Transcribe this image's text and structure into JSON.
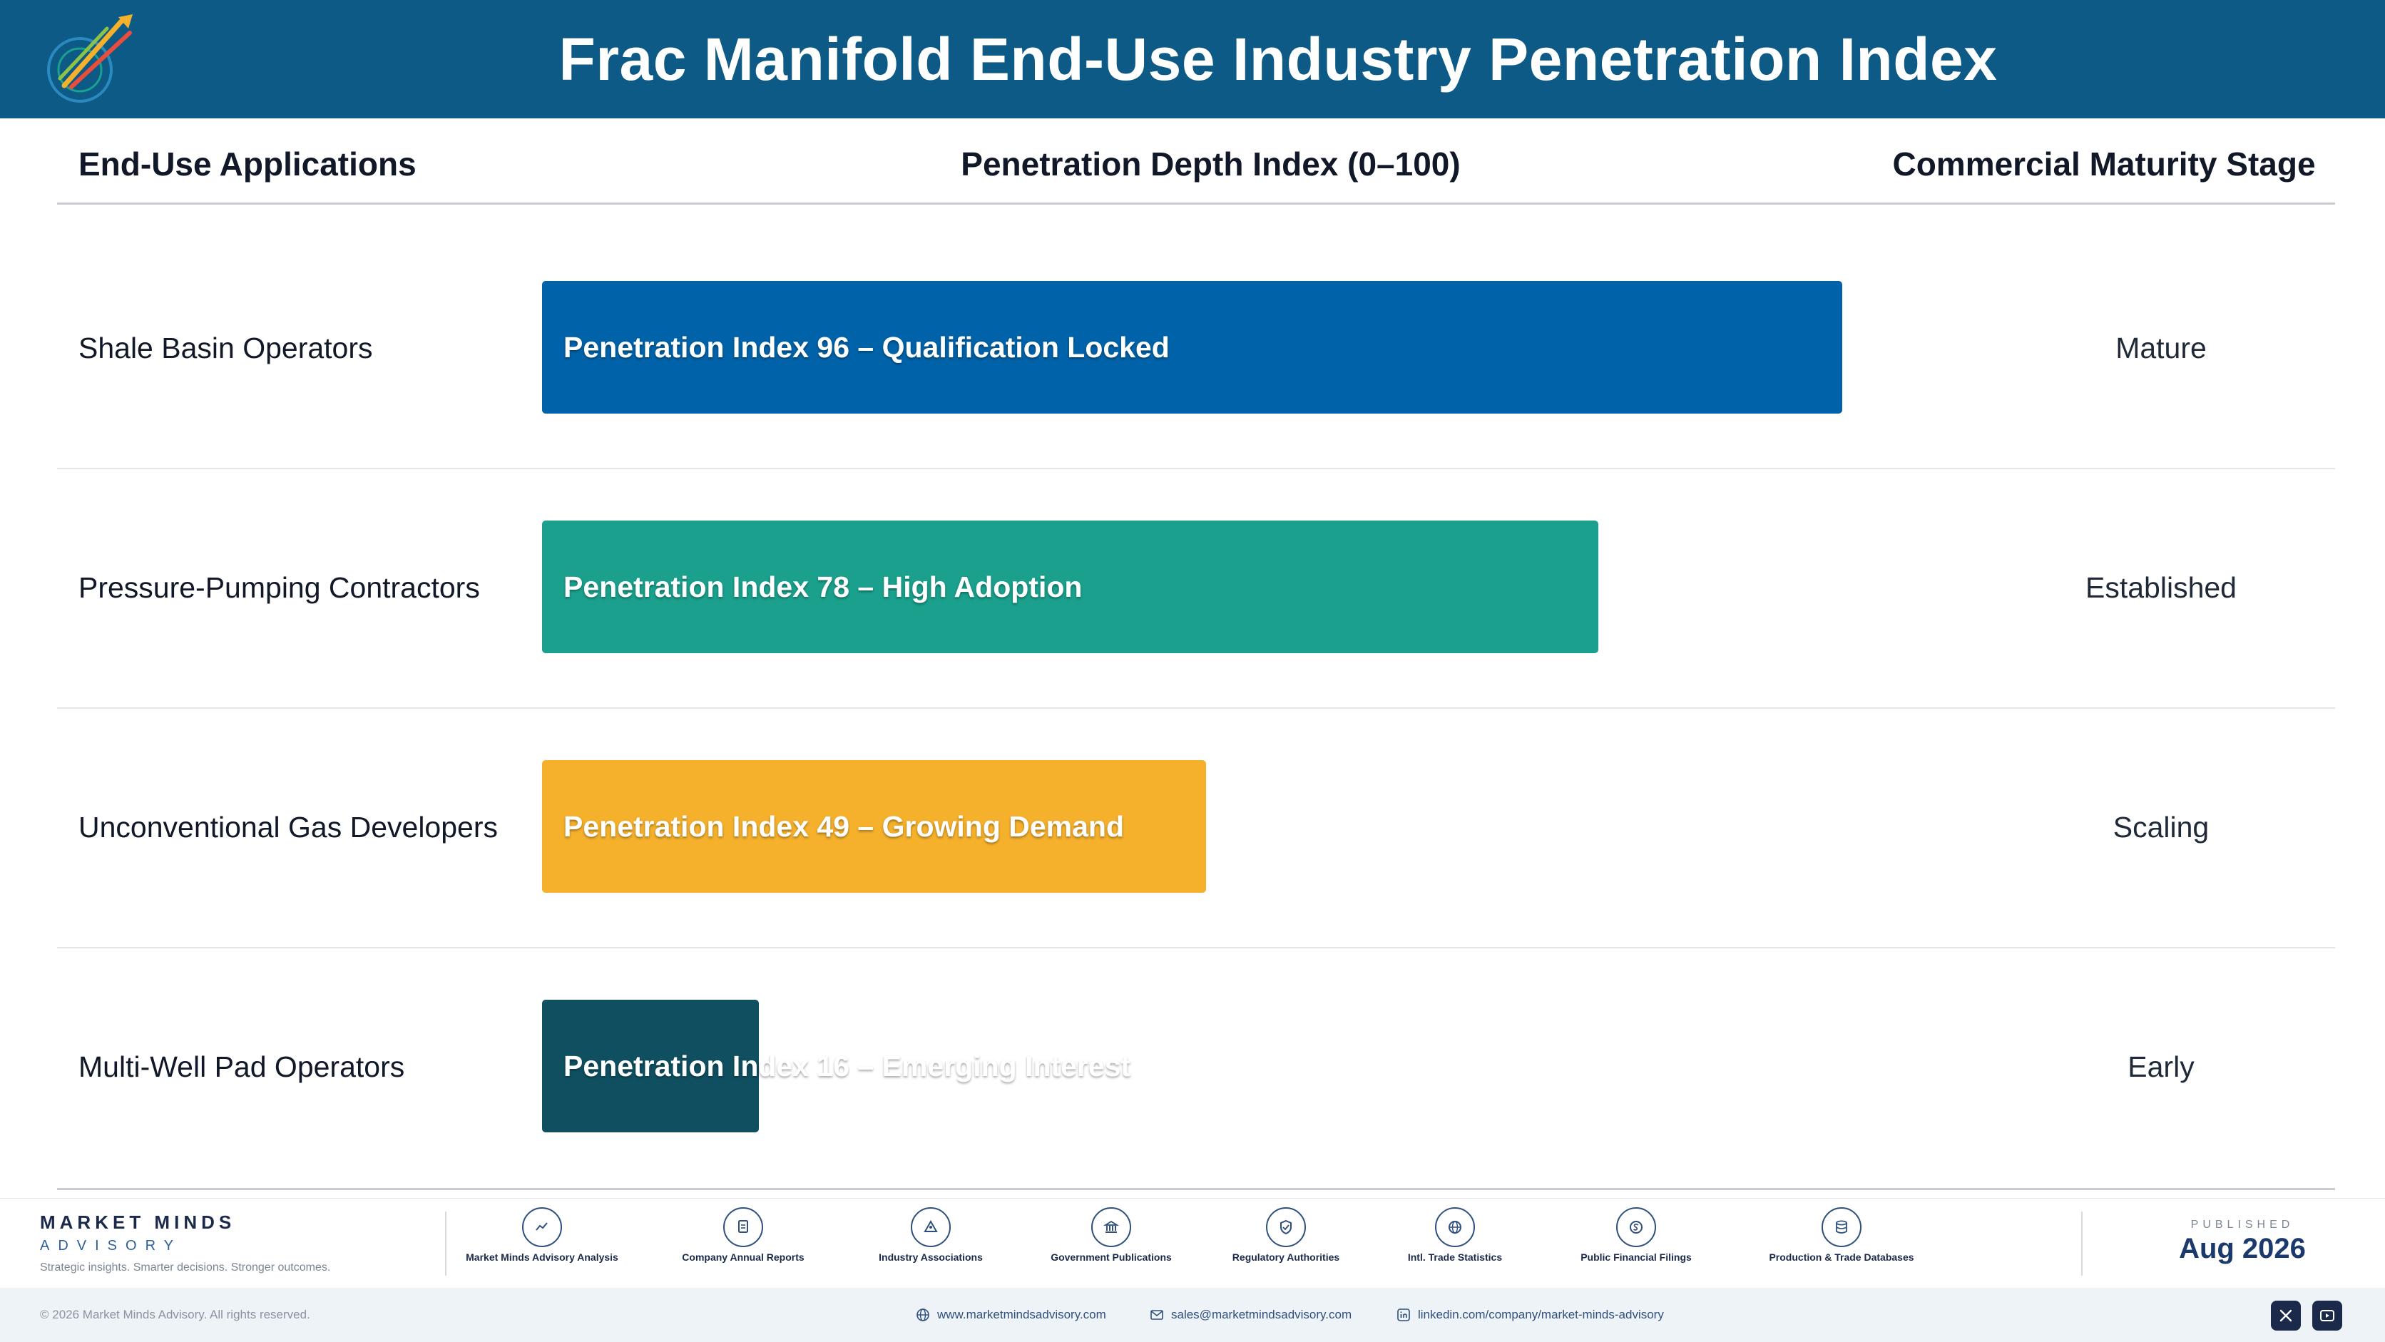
{
  "header": {
    "title": "Frac Manifold End-Use Industry Penetration Index"
  },
  "columns": {
    "applications": "End-Use Applications",
    "index": "Penetration Depth Index (0–100)",
    "stage": "Commercial Maturity Stage"
  },
  "chart_data": {
    "type": "bar",
    "orientation": "horizontal",
    "xlim": [
      0,
      100
    ],
    "categories": [
      "Shale Basin Operators",
      "Pressure-Pumping Contractors",
      "Unconventional Gas Developers",
      "Multi-Well Pad Operators"
    ],
    "values": [
      96,
      78,
      49,
      16
    ],
    "bar_labels": [
      "Penetration Index 96 – Qualification Locked",
      "Penetration Index 78 – High Adoption",
      "Penetration Index 49 – Growing Demand",
      "Penetration Index 16 – Emerging Interest"
    ],
    "stages": [
      "Mature",
      "Established",
      "Scaling",
      "Early"
    ],
    "colors": [
      "#0062a8",
      "#1aa08c",
      "#f5b02c",
      "#0f4f60"
    ]
  },
  "footer": {
    "brand_name": "MARKET MINDS",
    "brand_sub": "ADVISORY",
    "brand_tagline": "Strategic insights. Smarter decisions. Stronger outcomes.",
    "sources": [
      {
        "icon": "chart-line-icon",
        "label": "Market Minds Advisory Analysis"
      },
      {
        "icon": "document-icon",
        "label": "Company Annual Reports"
      },
      {
        "icon": "network-icon",
        "label": "Industry Associations"
      },
      {
        "icon": "government-building-icon",
        "label": "Government Publications"
      },
      {
        "icon": "shield-icon",
        "label": "Regulatory Authorities"
      },
      {
        "icon": "globe-icon",
        "label": "Intl. Trade Statistics"
      },
      {
        "icon": "dollar-coin-icon",
        "label": "Public Financial Filings"
      },
      {
        "icon": "database-icon",
        "label": "Production & Trade Databases"
      }
    ],
    "published_label": "PUBLISHED",
    "published_date": "Aug 2026",
    "copyright": "© 2026 Market Minds Advisory. All rights reserved.",
    "website": "www.marketmindsadvisory.com",
    "email": "sales@marketmindsadvisory.com",
    "linkedin": "linkedin.com/company/market-minds-advisory"
  }
}
